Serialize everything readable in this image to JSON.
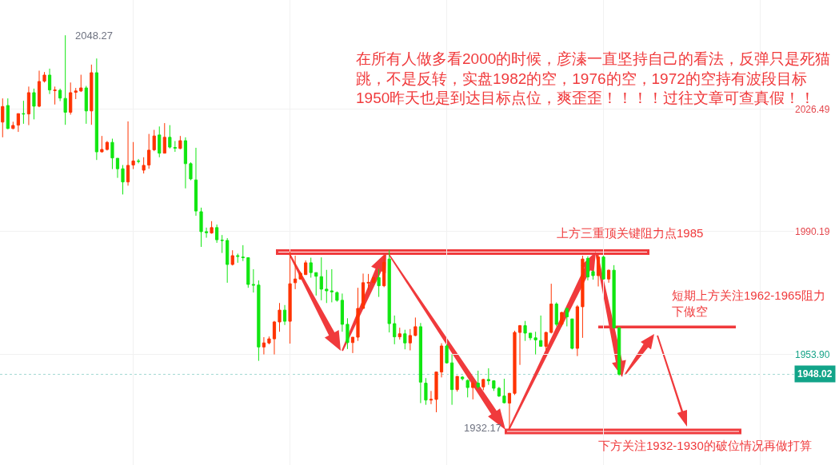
{
  "chart_data": {
    "type": "candlestick",
    "categories": [
      null,
      null,
      null,
      null,
      null,
      null,
      null,
      null,
      null,
      null,
      null,
      null,
      null,
      null,
      null,
      null,
      null,
      null,
      null,
      null,
      null,
      null,
      null,
      null,
      null,
      null,
      null,
      null,
      null,
      null,
      null,
      null,
      null,
      null,
      null,
      null,
      null,
      null,
      null,
      null,
      null,
      null,
      null,
      null,
      null,
      null,
      null,
      null,
      null,
      null,
      null,
      null,
      null,
      null,
      null,
      null,
      null,
      null,
      null,
      null,
      null,
      null,
      null,
      null,
      null,
      null,
      null,
      null,
      null,
      null,
      null,
      null,
      null,
      null,
      null,
      null,
      null,
      null,
      null,
      null,
      null,
      null,
      null,
      null,
      null,
      null,
      null,
      null,
      null,
      null,
      null,
      null,
      null,
      null,
      null,
      null,
      null,
      null,
      null,
      null,
      null,
      null,
      null,
      null,
      null,
      null,
      null,
      null,
      null,
      null,
      null,
      null,
      null,
      null,
      null,
      null,
      null,
      null,
      null,
      null,
      null,
      null,
      null,
      null,
      null,
      null,
      null,
      null,
      null,
      null,
      null,
      null,
      null,
      null,
      null,
      null,
      null,
      null,
      null,
      null,
      null,
      null,
      null,
      null,
      null,
      null,
      null,
      null,
      null,
      null,
      null,
      null
    ],
    "ohlc": [
      [
        2022.6,
        2029.6,
        2018.1,
        2027.2
      ],
      [
        2027.5,
        2029.6,
        2020.5,
        2020.7
      ],
      [
        2020.7,
        2022.7,
        2020.5,
        2021.6
      ],
      [
        2021.7,
        2025.1,
        2019.7,
        2025.1
      ],
      [
        2025.1,
        2028.9,
        2022.1,
        2025.0
      ],
      [
        2025.0,
        2033.1,
        2021.7,
        2031.3
      ],
      [
        2031.3,
        2032.5,
        2023.4,
        2027.3
      ],
      [
        2027.3,
        2037.8,
        2027.0,
        2034.6
      ],
      [
        2034.7,
        2037.4,
        2034.3,
        2036.5
      ],
      [
        2036.5,
        2038.4,
        2030.9,
        2032.1
      ],
      [
        2031.9,
        2033.1,
        2027.8,
        2032.1
      ],
      [
        2032.0,
        2032.5,
        2028.8,
        2029.7
      ],
      [
        2029.6,
        2048.27,
        2021.8,
        2025.5
      ],
      [
        2025.5,
        2034.3,
        2024.8,
        2031.3
      ],
      [
        2031.4,
        2032.7,
        2029.4,
        2031.8
      ],
      [
        2031.8,
        2036.6,
        2031.5,
        2032.7
      ],
      [
        2032.7,
        2033.3,
        2022.1,
        2025.9
      ],
      [
        2025.9,
        2039.6,
        2021.8,
        2037.2
      ],
      [
        2037.2,
        2041.4,
        2011.4,
        2013.8
      ],
      [
        2013.8,
        2018.5,
        2013.6,
        2014.5
      ],
      [
        2014.5,
        2017.0,
        2014.2,
        2016.6
      ],
      [
        2016.6,
        2017.7,
        2008.7,
        2012.0
      ],
      [
        2011.9,
        2011.9,
        2006.1,
        2008.8
      ],
      [
        2008.8,
        2009.9,
        2001.2,
        2004.9
      ],
      [
        2004.9,
        2022.8,
        2003.8,
        2009.8
      ],
      [
        2009.9,
        2016.7,
        2008.7,
        2011.1
      ],
      [
        2011.1,
        2011.7,
        2010.4,
        2011.0
      ],
      [
        2008.4,
        2012.2,
        2007.4,
        2009.8
      ],
      [
        2009.9,
        2019.1,
        2008.8,
        2014.3
      ],
      [
        2014.4,
        2020.3,
        2014.0,
        2018.5
      ],
      [
        2018.8,
        2021.3,
        2012.2,
        2013.4
      ],
      [
        2013.4,
        2022.3,
        2013.4,
        2018.1
      ],
      [
        2018.1,
        2021.7,
        2014.8,
        2015.2
      ],
      [
        2015.1,
        2017.0,
        2013.8,
        2014.9
      ],
      [
        2014.8,
        2018.5,
        2014.6,
        2017.1
      ],
      [
        2017.1,
        2018.1,
        2003.0,
        2010.3
      ],
      [
        2010.3,
        2010.7,
        2005.4,
        2005.8
      ],
      [
        2005.5,
        2015.0,
        1994.9,
        1996.3
      ],
      [
        1996.1,
        1997.3,
        1985.7,
        1990.2
      ],
      [
        1990.2,
        1991.4,
        1988.4,
        1989.9
      ],
      [
        1989.8,
        1993.3,
        1989.6,
        1991.4
      ],
      [
        1991.4,
        1992.3,
        1986.9,
        1987.8
      ],
      [
        1987.7,
        1989.2,
        1983.9,
        1987.6
      ],
      [
        1987.6,
        1988.3,
        1975.1,
        1980.5
      ],
      [
        1980.5,
        1984.7,
        1980.2,
        1983.1
      ],
      [
        1983.1,
        1983.7,
        1981.0,
        1982.9
      ],
      [
        1982.7,
        1986.2,
        1981.5,
        1982.5
      ],
      [
        1982.5,
        1982.5,
        1973.6,
        1974.6
      ],
      [
        1974.6,
        1979.1,
        1972.2,
        1974.4
      ],
      [
        1974.4,
        1975.8,
        1952.0,
        1956.1
      ],
      [
        1956.1,
        1959.0,
        1953.9,
        1957.3
      ],
      [
        1957.3,
        1959.2,
        1956.9,
        1958.5
      ],
      [
        1958.5,
        1963.8,
        1953.9,
        1963.5
      ],
      [
        1963.5,
        1969.1,
        1960.6,
        1967.0
      ],
      [
        1967.0,
        1968.5,
        1962.6,
        1963.7
      ],
      [
        1963.7,
        1984.3,
        1957.1,
        1974.8
      ],
      [
        1975.1,
        1983.1,
        1973.2,
        1976.2
      ],
      [
        1976.2,
        1978.4,
        1976.0,
        1977.9
      ],
      [
        1977.5,
        1981.7,
        1977.5,
        1981.0
      ],
      [
        1981.0,
        1982.5,
        1976.6,
        1978.1
      ],
      [
        1978.1,
        1978.1,
        1971.3,
        1977.0
      ],
      [
        1976.9,
        1982.6,
        1969.9,
        1973.2
      ],
      [
        1973.2,
        1978.9,
        1969.1,
        1972.7
      ],
      [
        1972.7,
        1979.1,
        1969.3,
        1972.4
      ],
      [
        1972.2,
        1972.5,
        1969.5,
        1969.9
      ],
      [
        1969.9,
        1971.9,
        1960.6,
        1962.8
      ],
      [
        1962.8,
        1964.6,
        1955.5,
        1957.4
      ],
      [
        1957.4,
        1959.0,
        1954.3,
        1959.0
      ],
      [
        1959.0,
        1973.6,
        1957.9,
        1967.5
      ],
      [
        1967.5,
        1977.8,
        1967.5,
        1975.1
      ],
      [
        1975.0,
        1977.7,
        1972.9,
        1975.2
      ],
      [
        1975.2,
        1976.9,
        1975.0,
        1976.6
      ],
      [
        1976.6,
        1979.2,
        1970.9,
        1974.2
      ],
      [
        1974.2,
        1983.1,
        1973.8,
        1981.1
      ],
      [
        1982.1,
        1984.8,
        1960.4,
        1963.0
      ],
      [
        1963.0,
        1965.4,
        1956.9,
        1959.1
      ],
      [
        1959.1,
        1961.8,
        1958.3,
        1960.0
      ],
      [
        1960.0,
        1961.2,
        1955.4,
        1957.3
      ],
      [
        1957.3,
        1961.4,
        1955.1,
        1959.5
      ],
      [
        1959.5,
        1964.8,
        1959.3,
        1962.1
      ],
      [
        1962.1,
        1963.2,
        1939.5,
        1945.7
      ],
      [
        1945.4,
        1946.9,
        1939.0,
        1940.4
      ],
      [
        1940.4,
        1943.1,
        1939.2,
        1940.6
      ],
      [
        1940.6,
        1948.8,
        1936.8,
        1948.7
      ],
      [
        1948.7,
        1957.2,
        1947.1,
        1956.4
      ],
      [
        1956.4,
        1956.9,
        1951.2,
        1951.4
      ],
      [
        1951.4,
        1953.9,
        1939.0,
        1943.5
      ],
      [
        1943.5,
        1947.5,
        1942.9,
        1947.4
      ],
      [
        1947.2,
        1947.5,
        1946.2,
        1946.7
      ],
      [
        1946.2,
        1946.5,
        1941.2,
        1944.1
      ],
      [
        1944.1,
        1946.1,
        1940.6,
        1945.4
      ],
      [
        1945.4,
        1949.1,
        1943.7,
        1944.3
      ],
      [
        1944.3,
        1946.7,
        1943.3,
        1946.5
      ],
      [
        1946.5,
        1949.8,
        1944.9,
        1946.1
      ],
      [
        1946.1,
        1946.2,
        1943.1,
        1943.9
      ],
      [
        1943.9,
        1944.3,
        1941.3,
        1941.6
      ],
      [
        1941.6,
        1946.7,
        1939.4,
        1939.6
      ],
      [
        1939.5,
        1942.5,
        1932.17,
        1942.4
      ],
      [
        1942.4,
        1960.9,
        1941.9,
        1960.4
      ],
      [
        1960.4,
        1962.6,
        1950.8,
        1962.4
      ],
      [
        1962.4,
        1963.8,
        1957.9,
        1960.2
      ],
      [
        1960.2,
        1960.2,
        1958.1,
        1958.8
      ],
      [
        1958.8,
        1960.6,
        1953.9,
        1958.2
      ],
      [
        1958.0,
        1965.4,
        1956.2,
        1956.3
      ],
      [
        1956.3,
        1960.6,
        1955.1,
        1960.4
      ],
      [
        1960.4,
        1974.8,
        1960.1,
        1968.8
      ],
      [
        1968.8,
        1969.3,
        1962.2,
        1962.8
      ],
      [
        1962.8,
        1966.5,
        1962.2,
        1966.3
      ],
      [
        1967.5,
        1967.7,
        1962.2,
        1965.0
      ],
      [
        1964.4,
        1964.4,
        1955.4,
        1955.7
      ],
      [
        1955.7,
        1968.5,
        1953.4,
        1968.0
      ],
      [
        1968.0,
        1983.1,
        1958.8,
        1982.1
      ],
      [
        1982.3,
        1982.9,
        1975.8,
        1976.8
      ],
      [
        1978.4,
        1978.8,
        1976.0,
        1977.2
      ],
      [
        1977.2,
        1983.5,
        1974.0,
        1982.7
      ],
      [
        1982.7,
        1983.1,
        1976.0,
        1976.2
      ],
      [
        1976.2,
        1979.0,
        1975.1,
        1978.8
      ],
      [
        1978.8,
        1980.3,
        1961.5,
        1961.8
      ],
      [
        1961.8,
        1961.8,
        1947.6,
        1948.02
      ],
      null,
      null,
      null,
      null,
      null,
      null,
      null,
      null,
      null,
      null,
      null,
      null,
      null,
      null,
      null,
      null,
      null,
      null,
      null,
      null,
      null,
      null,
      null,
      null,
      null,
      null,
      null,
      null,
      null,
      null,
      null,
      null,
      null
    ],
    "colors": [
      "#ff3300",
      "#11e611",
      "#ff3300",
      "#ff3300",
      "#11e611",
      "#ff3300",
      "#11e611",
      "#ff3300",
      "#ff3300",
      "#11e611",
      "#ff3300",
      "#11e611",
      "#11e611",
      "#ff3300",
      "#ff3300",
      "#ff3300",
      "#11e611",
      "#ff3300",
      "#11e611",
      "#ff3300",
      "#ff3300",
      "#11e611",
      "#11e611",
      "#11e611",
      "#ff3300",
      "#ff3300",
      "#11e611",
      "#ff3300",
      "#ff3300",
      "#ff3300",
      "#11e611",
      "#ff3300",
      "#11e611",
      "#11e611",
      "#ff3300",
      "#11e611",
      "#11e611",
      "#11e611",
      "#11e611",
      "#11e611",
      "#ff3300",
      "#11e611",
      "#11e611",
      "#11e611",
      "#ff3300",
      "#11e611",
      "#11e611",
      "#11e611",
      "#11e611",
      "#11e611",
      "#ff3300",
      "#ff3300",
      "#ff3300",
      "#ff3300",
      "#11e611",
      "#ff3300",
      "#ff3300",
      "#ff3300",
      "#ff3300",
      "#11e611",
      "#11e611",
      "#11e611",
      "#11e611",
      "#11e611",
      "#11e611",
      "#11e611",
      "#11e611",
      "#ff3300",
      "#ff3300",
      "#ff3300",
      "#ff3300",
      "#ff3300",
      "#11e611",
      "#ff3300",
      "#11e611",
      "#11e611",
      "#ff3300",
      "#11e611",
      "#ff3300",
      "#ff3300",
      "#11e611",
      "#11e611",
      "#ff3300",
      "#ff3300",
      "#ff3300",
      "#11e611",
      "#11e611",
      "#ff3300",
      "#11e611",
      "#11e611",
      "#ff3300",
      "#11e611",
      "#ff3300",
      "#11e611",
      "#11e611",
      "#11e611",
      "#11e611",
      "#ff3300",
      "#ff3300",
      "#ff3300",
      "#11e611",
      "#11e611",
      "#11e611",
      "#11e611",
      "#ff3300",
      "#ff3300",
      "#11e611",
      "#ff3300",
      "#11e611",
      "#11e611",
      "#ff3300",
      "#ff3300",
      "#11e611",
      "#11e611",
      "#ff3300",
      "#11e611",
      "#ff3300",
      "#11e611",
      "#11e611",
      null,
      null,
      null,
      null,
      null,
      null,
      null,
      null,
      null,
      null,
      null,
      null,
      null,
      null,
      null,
      null,
      null,
      null,
      null,
      null,
      null,
      null,
      null,
      null,
      null,
      null,
      null,
      null,
      null,
      null,
      null,
      null,
      null
    ],
    "ylim": [
      1921.2,
      2058.7
    ],
    "yticks": [
      {
        "value": 1953.9,
        "label": "1953.90"
      },
      1990.19,
      2026.49
    ],
    "grid": true,
    "tick_labels": "y",
    "ref_lines": [
      {
        "axis": "y",
        "value": 1948.02,
        "label": "1948.02",
        "color": "#a3d9d2",
        "line_style": "dotted"
      },
      {
        "axis": "y",
        "value": 1962,
        "label": "短期上方关注1962-1965阻力下做空",
        "color": "#f03a3c",
        "line_style": "solid"
      }
    ],
    "annotations": [
      "在所有人做多看2000的时候，彦溱一直坚持自己的看法，反弹只是死猫跳，不是反转，实盘1982的空，1976的空，1972的空持有波段目标1950昨天也是到达目标点位，爽歪歪！！！！过往文章可查真假！！",
      "2048.27",
      "1932.17",
      "上方三重顶关键阻力点1985",
      "下方关注1932-1930的破位情况再做打算"
    ]
  }
}
